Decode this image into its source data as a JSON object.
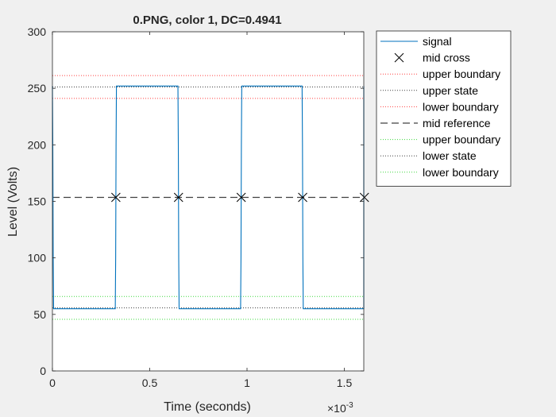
{
  "chart_data": {
    "type": "line",
    "title": "0.PNG, color 1, DC=0.4941",
    "xlabel": "Time (seconds)",
    "ylabel": "Level (Volts)",
    "x_exponent_label": "×10",
    "x_exponent": "-3",
    "xlim": [
      0,
      0.0016
    ],
    "ylim": [
      0,
      300
    ],
    "x_ticks": [
      0,
      0.0005,
      0.001,
      0.0015
    ],
    "x_tick_labels": [
      "0",
      "0.5",
      "1",
      "1.5"
    ],
    "y_ticks": [
      0,
      50,
      100,
      150,
      200,
      250,
      300
    ],
    "y_tick_labels": [
      "0",
      "50",
      "100",
      "150",
      "200",
      "250",
      "300"
    ],
    "grid": false,
    "legend_placement": "outside-top-right",
    "series": [
      {
        "name": "signal",
        "color": "#0072bd",
        "x": [
          0,
          2e-06,
          4e-06,
          6e-06,
          0.000323,
          0.000325,
          0.000327,
          0.000329,
          0.000645,
          0.000647,
          0.000649,
          0.000651,
          0.000967,
          0.000969,
          0.000971,
          0.000973,
          0.001283,
          0.001285,
          0.001287,
          0.001289,
          0.0016,
          0.001602,
          0.001604
        ],
        "y": [
          252,
          200,
          100,
          55,
          55,
          100,
          200,
          252,
          252,
          200,
          100,
          55,
          55,
          100,
          200,
          252,
          252,
          200,
          100,
          55,
          55,
          150,
          252
        ]
      },
      {
        "name": "mid cross",
        "color": "#000000",
        "x": [
          0.000326,
          0.000648,
          0.00097,
          0.001286,
          0.001603
        ],
        "y": [
          153.5,
          153.5,
          153.5,
          153.5,
          153.5
        ]
      },
      {
        "name": "upper boundary",
        "color": "#ff0000",
        "y": 261.3
      },
      {
        "name": "upper state",
        "color": "#000000",
        "y": 251.2
      },
      {
        "name": "lower boundary",
        "color": "#ff0000",
        "y": 241.1
      },
      {
        "name": "mid reference",
        "color": "#000000",
        "y": 153.5
      },
      {
        "name": "upper boundary",
        "color": "#00cc00",
        "y": 65.9
      },
      {
        "name": "lower state",
        "color": "#000000",
        "y": 55.8
      },
      {
        "name": "lower boundary",
        "color": "#00cc00",
        "y": 45.7
      }
    ]
  }
}
